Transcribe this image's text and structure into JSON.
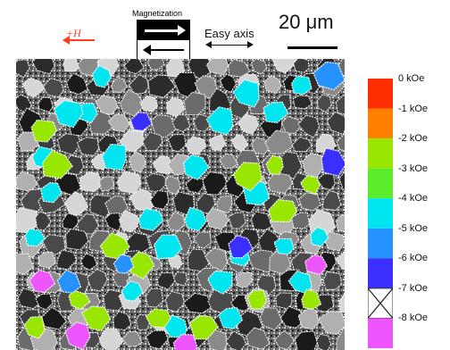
{
  "field_label": "+H",
  "magnetization_title": "Magnetization",
  "easy_axis_label": "Easy axis",
  "scale_label": "20 μm",
  "colors": {
    "field_arrow": "#ff3c1a",
    "grain_dark": "#3a3a3a",
    "grain_mid": "#7a7a7a",
    "grain_light": "#c8c8c8",
    "boundary": "#ffffff"
  },
  "colorbar": [
    {
      "label": "0 kOe",
      "color": "#ff2d00"
    },
    {
      "label": "-1 kOe",
      "color": "#ff7f00"
    },
    {
      "label": "-2 kOe",
      "color": "#99e600"
    },
    {
      "label": "-3 kOe",
      "color": "#5aeb2a"
    },
    {
      "label": "-4 kOe",
      "color": "#00e6f0"
    },
    {
      "label": "-5 kOe",
      "color": "#2592ff"
    },
    {
      "label": "-6 kOe",
      "color": "#3a2fff"
    },
    {
      "label": "-7 kOe",
      "color": "cross"
    },
    {
      "label": "-8 kOe",
      "color": "#ee55ff"
    }
  ]
}
